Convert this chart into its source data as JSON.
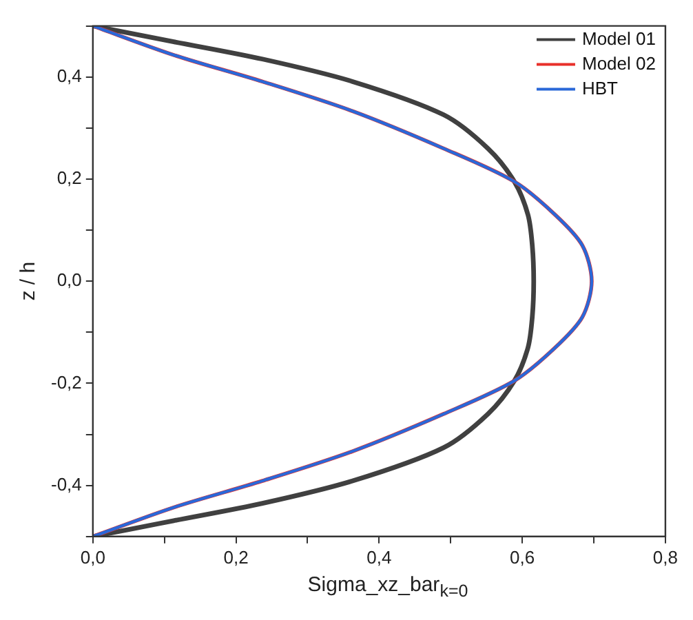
{
  "chart_data": {
    "type": "line",
    "xlabel": "Sigma_xz_bar$_{k=0}$",
    "ylabel": "z / h",
    "xlim": [
      0,
      0.8
    ],
    "ylim": [
      -0.5,
      0.5
    ],
    "xticks": [
      {
        "value": 0,
        "label": "0,0"
      },
      {
        "value": 0.1,
        "label": null
      },
      {
        "value": 0.2,
        "label": "0,2"
      },
      {
        "value": 0.3,
        "label": null
      },
      {
        "value": 0.4,
        "label": "0,4"
      },
      {
        "value": 0.5,
        "label": null
      },
      {
        "value": 0.6,
        "label": "0,6"
      },
      {
        "value": 0.7,
        "label": null
      },
      {
        "value": 0.8,
        "label": "0,8"
      }
    ],
    "yticks": [
      {
        "value": -0.5,
        "label": null
      },
      {
        "value": -0.4,
        "label": "-0,4"
      },
      {
        "value": -0.3,
        "label": null
      },
      {
        "value": -0.2,
        "label": "-0,2"
      },
      {
        "value": -0.1,
        "label": null
      },
      {
        "value": 0,
        "label": "0,0"
      },
      {
        "value": 0.1,
        "label": null
      },
      {
        "value": 0.2,
        "label": "0,2"
      },
      {
        "value": 0.3,
        "label": null
      },
      {
        "value": 0.4,
        "label": "0,4"
      },
      {
        "value": 0.5,
        "label": null
      }
    ],
    "legend": "top right",
    "grid": false,
    "marker": "none",
    "line_style": "solid",
    "series": [
      {
        "name": "Model 01",
        "color": "#404040",
        "x": [
          0,
          0.113,
          0.237,
          0.363,
          0.49,
          0.552,
          0.589,
          0.608,
          0.614,
          0.616,
          0.614,
          0.608,
          0.589,
          0.552,
          0.49,
          0.363,
          0.237,
          0.113,
          0
        ],
        "values": [
          0.5,
          0.469,
          0.435,
          0.391,
          0.326,
          0.26,
          0.195,
          0.13,
          0.07,
          0,
          -0.07,
          -0.13,
          -0.195,
          -0.26,
          -0.326,
          -0.391,
          -0.435,
          -0.469,
          -0.5
        ]
      },
      {
        "name": "Model 02",
        "color": "#e8302a",
        "x": [
          0,
          0.113,
          0.237,
          0.363,
          0.49,
          0.589,
          0.646,
          0.684,
          0.697,
          0.684,
          0.646,
          0.589,
          0.49,
          0.363,
          0.237,
          0.113,
          0
        ],
        "values": [
          0.5,
          0.443,
          0.391,
          0.333,
          0.26,
          0.195,
          0.13,
          0.07,
          0,
          -0.07,
          -0.13,
          -0.195,
          -0.26,
          -0.333,
          -0.391,
          -0.443,
          -0.5
        ]
      },
      {
        "name": "HBT",
        "color": "#2a68d8",
        "x": [
          0,
          0.113,
          0.237,
          0.363,
          0.49,
          0.589,
          0.646,
          0.684,
          0.697,
          0.684,
          0.646,
          0.589,
          0.49,
          0.363,
          0.237,
          0.113,
          0
        ],
        "values": [
          0.5,
          0.443,
          0.391,
          0.333,
          0.26,
          0.195,
          0.13,
          0.07,
          0,
          -0.07,
          -0.13,
          -0.195,
          -0.26,
          -0.333,
          -0.391,
          -0.443,
          -0.5
        ]
      }
    ]
  }
}
